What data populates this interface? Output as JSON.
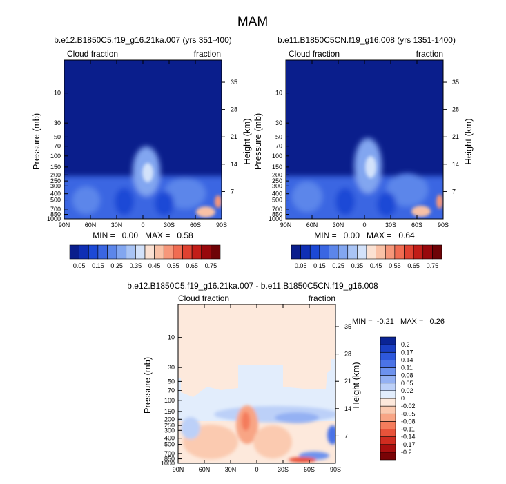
{
  "page": {
    "title": "MAM"
  },
  "colorbar_top": {
    "colors": [
      "#0a1e8c",
      "#0f2fb4",
      "#1c49d6",
      "#3a66e2",
      "#5c86ea",
      "#82a6f0",
      "#a9c4f5",
      "#d3e2fa",
      "#fbe1d2",
      "#f9c1a6",
      "#f6977a",
      "#f06c52",
      "#e04231",
      "#c21d18",
      "#98080c",
      "#6e0306"
    ],
    "labels": [
      "0.05",
      "0.15",
      "0.25",
      "0.35",
      "0.45",
      "0.55",
      "0.65",
      "0.75"
    ]
  },
  "colorbar_diff": {
    "colors": [
      "#0a2496",
      "#1a3fc4",
      "#2e58dc",
      "#4b73e6",
      "#6d92ee",
      "#94b1f3",
      "#bcd0f8",
      "#e2edfc",
      "#fde9dc",
      "#fbcab0",
      "#f8a585",
      "#f47c5c",
      "#e8533a",
      "#d02c20",
      "#a80f0f",
      "#7a0306"
    ],
    "labels": [
      "0.2",
      "0.17",
      "0.14",
      "0.11",
      "0.08",
      "0.05",
      "0.02",
      "0",
      "-0.02",
      "-0.05",
      "-0.08",
      "-0.11",
      "-0.14",
      "-0.17",
      "-0.2"
    ]
  },
  "chart_data": [
    {
      "type": "heatmap",
      "title": "b.e12.B1850C5.f19_g16.21ka.007 (yrs 351-400)",
      "left_label": "Cloud fraction",
      "right_label": "fraction",
      "ylabel": "Pressure (mb)",
      "ylabel_right": "Height (km)",
      "x_ticks": [
        "90N",
        "60N",
        "30N",
        "0",
        "30S",
        "60S",
        "90S"
      ],
      "y_ticks": [
        "10",
        "30",
        "50",
        "70",
        "100",
        "150",
        "200",
        "250",
        "300",
        "400",
        "500",
        "700",
        "850",
        "1000"
      ],
      "y_ticks_right": [
        "35",
        "28",
        "21",
        "14",
        "7"
      ],
      "stats": "MIN =   0.00   MAX =   0.58"
    },
    {
      "type": "heatmap",
      "title": "b.e11.B1850C5CN.f19_g16.008 (yrs 1351-1400)",
      "left_label": "Cloud fraction",
      "right_label": "fraction",
      "ylabel": "Pressure (mb)",
      "ylabel_right": "Height (km)",
      "x_ticks": [
        "90N",
        "60N",
        "30N",
        "0",
        "30S",
        "60S",
        "90S"
      ],
      "y_ticks": [
        "10",
        "30",
        "50",
        "70",
        "100",
        "150",
        "200",
        "250",
        "300",
        "400",
        "500",
        "700",
        "850",
        "1000"
      ],
      "y_ticks_right": [
        "35",
        "28",
        "21",
        "14",
        "7"
      ],
      "stats": "MIN =   0.00   MAX =   0.64"
    },
    {
      "type": "heatmap",
      "title": "b.e12.B1850C5.f19_g16.21ka.007 - b.e11.B1850C5CN.f19_g16.008",
      "left_label": "Cloud fraction",
      "right_label": "fraction",
      "ylabel": "Pressure (mb)",
      "ylabel_right": "Height (km)",
      "x_ticks": [
        "90N",
        "60N",
        "30N",
        "0",
        "30S",
        "60S",
        "90S"
      ],
      "y_ticks": [
        "10",
        "30",
        "50",
        "70",
        "100",
        "150",
        "200",
        "250",
        "300",
        "400",
        "500",
        "700",
        "850",
        "1000"
      ],
      "y_ticks_right": [
        "35",
        "28",
        "21",
        "14",
        "7"
      ],
      "stats": "MIN =  -0.21   MAX =   0.26"
    }
  ]
}
